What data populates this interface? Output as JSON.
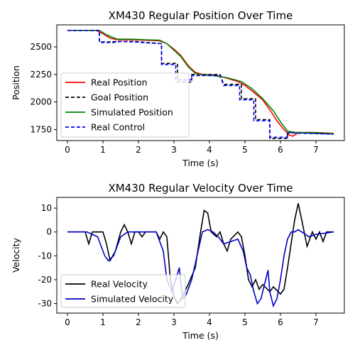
{
  "chart_data": [
    {
      "type": "line",
      "title": "XM430 Regular Position Over Time",
      "xlabel": "Time (s)",
      "ylabel": "Position",
      "xlim": [
        -0.3,
        7.8
      ],
      "ylim": [
        1650,
        2700
      ],
      "xticks": [
        0,
        1,
        2,
        3,
        4,
        5,
        6,
        7
      ],
      "yticks": [
        1750,
        2000,
        2250,
        2500
      ],
      "legend_position": "lower-left",
      "series": [
        {
          "name": "Real Position",
          "color": "#ff0000",
          "style": "solid",
          "points": [
            [
              0,
              2650
            ],
            [
              0.8,
              2650
            ],
            [
              1.0,
              2620
            ],
            [
              1.2,
              2580
            ],
            [
              1.4,
              2565
            ],
            [
              1.8,
              2565
            ],
            [
              2.2,
              2560
            ],
            [
              2.6,
              2555
            ],
            [
              2.8,
              2530
            ],
            [
              3.0,
              2480
            ],
            [
              3.2,
              2420
            ],
            [
              3.4,
              2330
            ],
            [
              3.6,
              2270
            ],
            [
              3.8,
              2250
            ],
            [
              4.1,
              2245
            ],
            [
              4.4,
              2225
            ],
            [
              4.8,
              2185
            ],
            [
              5.0,
              2150
            ],
            [
              5.2,
              2100
            ],
            [
              5.5,
              2020
            ],
            [
              5.7,
              1930
            ],
            [
              5.9,
              1830
            ],
            [
              6.1,
              1750
            ],
            [
              6.25,
              1700
            ],
            [
              6.35,
              1690
            ],
            [
              6.5,
              1720
            ],
            [
              6.8,
              1725
            ],
            [
              7.2,
              1720
            ],
            [
              7.5,
              1715
            ]
          ]
        },
        {
          "name": "Goal Position",
          "color": "#000000",
          "style": "dashed",
          "points": [
            [
              0,
              2650
            ],
            [
              0.9,
              2650
            ],
            [
              0.9,
              2545
            ],
            [
              1.2,
              2545
            ],
            [
              1.4,
              2550
            ],
            [
              1.9,
              2550
            ],
            [
              2.2,
              2540
            ],
            [
              2.65,
              2530
            ],
            [
              2.65,
              2350
            ],
            [
              3.1,
              2350
            ],
            [
              3.1,
              2180
            ],
            [
              3.5,
              2180
            ],
            [
              3.5,
              2250
            ],
            [
              4.3,
              2250
            ],
            [
              4.4,
              2160
            ],
            [
              4.9,
              2160
            ],
            [
              4.9,
              2030
            ],
            [
              5.3,
              2030
            ],
            [
              5.3,
              1840
            ],
            [
              5.7,
              1840
            ],
            [
              5.7,
              1670
            ],
            [
              6.2,
              1670
            ],
            [
              6.2,
              1725
            ],
            [
              7.5,
              1710
            ]
          ]
        },
        {
          "name": "Simulated Position",
          "color": "#008000",
          "style": "solid",
          "points": [
            [
              0,
              2650
            ],
            [
              0.9,
              2650
            ],
            [
              1.1,
              2610
            ],
            [
              1.4,
              2570
            ],
            [
              1.8,
              2570
            ],
            [
              2.2,
              2565
            ],
            [
              2.6,
              2560
            ],
            [
              2.8,
              2530
            ],
            [
              3.0,
              2470
            ],
            [
              3.2,
              2410
            ],
            [
              3.4,
              2320
            ],
            [
              3.6,
              2260
            ],
            [
              3.8,
              2245
            ],
            [
              4.1,
              2240
            ],
            [
              4.5,
              2220
            ],
            [
              4.9,
              2185
            ],
            [
              5.2,
              2120
            ],
            [
              5.5,
              2030
            ],
            [
              5.8,
              1920
            ],
            [
              6.0,
              1820
            ],
            [
              6.2,
              1735
            ],
            [
              6.4,
              1725
            ],
            [
              7.0,
              1720
            ],
            [
              7.5,
              1712
            ]
          ]
        },
        {
          "name": "Real Control",
          "color": "#0000ff",
          "style": "dashed",
          "points": [
            [
              0,
              2650
            ],
            [
              0.9,
              2650
            ],
            [
              0.9,
              2540
            ],
            [
              1.3,
              2540
            ],
            [
              1.5,
              2550
            ],
            [
              1.9,
              2545
            ],
            [
              2.3,
              2535
            ],
            [
              2.65,
              2530
            ],
            [
              2.65,
              2340
            ],
            [
              3.05,
              2340
            ],
            [
              3.05,
              2200
            ],
            [
              3.5,
              2200
            ],
            [
              3.5,
              2240
            ],
            [
              4.3,
              2240
            ],
            [
              4.4,
              2150
            ],
            [
              4.85,
              2150
            ],
            [
              4.85,
              2020
            ],
            [
              5.25,
              2020
            ],
            [
              5.25,
              1830
            ],
            [
              5.7,
              1830
            ],
            [
              5.7,
              1680
            ],
            [
              6.2,
              1680
            ],
            [
              6.2,
              1720
            ],
            [
              7.5,
              1708
            ]
          ]
        }
      ]
    },
    {
      "type": "line",
      "title": "XM430 Regular Velocity Over Time",
      "xlabel": "Time (s)",
      "ylabel": "Velocity",
      "xlim": [
        -0.3,
        7.8
      ],
      "ylim": [
        -34,
        14.5
      ],
      "xticks": [
        0,
        1,
        2,
        3,
        4,
        5,
        6,
        7
      ],
      "yticks": [
        10,
        0,
        -10,
        -20,
        -30
      ],
      "legend_position": "lower-left",
      "series": [
        {
          "name": "Real Velocity",
          "color": "#000000",
          "style": "solid",
          "points": [
            [
              0,
              0
            ],
            [
              0.5,
              0
            ],
            [
              0.6,
              -5
            ],
            [
              0.7,
              0
            ],
            [
              1.0,
              0
            ],
            [
              1.1,
              -5
            ],
            [
              1.2,
              -12
            ],
            [
              1.35,
              -8
            ],
            [
              1.5,
              0
            ],
            [
              1.6,
              3
            ],
            [
              1.7,
              0
            ],
            [
              1.8,
              -5
            ],
            [
              1.9,
              0
            ],
            [
              2.0,
              0
            ],
            [
              2.1,
              -2
            ],
            [
              2.2,
              0
            ],
            [
              2.5,
              0
            ],
            [
              2.6,
              -3
            ],
            [
              2.7,
              0
            ],
            [
              2.8,
              -2
            ],
            [
              2.9,
              -20
            ],
            [
              3.0,
              -27
            ],
            [
              3.1,
              -30
            ],
            [
              3.2,
              -28
            ],
            [
              3.4,
              -22
            ],
            [
              3.6,
              -15
            ],
            [
              3.75,
              0
            ],
            [
              3.85,
              9
            ],
            [
              3.95,
              8
            ],
            [
              4.05,
              0
            ],
            [
              4.2,
              -2
            ],
            [
              4.3,
              0
            ],
            [
              4.4,
              -5
            ],
            [
              4.5,
              -8
            ],
            [
              4.6,
              -3
            ],
            [
              4.8,
              0
            ],
            [
              4.9,
              -2
            ],
            [
              5.0,
              -10
            ],
            [
              5.1,
              -20
            ],
            [
              5.2,
              -23
            ],
            [
              5.3,
              -20
            ],
            [
              5.4,
              -24
            ],
            [
              5.5,
              -22
            ],
            [
              5.7,
              -25
            ],
            [
              5.8,
              -23
            ],
            [
              6.0,
              -26
            ],
            [
              6.1,
              -24
            ],
            [
              6.2,
              -15
            ],
            [
              6.3,
              -5
            ],
            [
              6.4,
              5
            ],
            [
              6.5,
              12
            ],
            [
              6.6,
              5
            ],
            [
              6.75,
              -6
            ],
            [
              6.9,
              0
            ],
            [
              7.0,
              -3
            ],
            [
              7.1,
              0
            ],
            [
              7.2,
              -4
            ],
            [
              7.3,
              0
            ],
            [
              7.5,
              0
            ]
          ]
        },
        {
          "name": "Simulated Velocity",
          "color": "#0000cc",
          "style": "solid",
          "points": [
            [
              0,
              0
            ],
            [
              0.55,
              0
            ],
            [
              0.7,
              -1
            ],
            [
              0.85,
              -2
            ],
            [
              1.05,
              -10
            ],
            [
              1.15,
              -12
            ],
            [
              1.3,
              -10
            ],
            [
              1.5,
              -2
            ],
            [
              1.7,
              0
            ],
            [
              2.5,
              0
            ],
            [
              2.7,
              -8
            ],
            [
              2.8,
              -20
            ],
            [
              2.95,
              -25
            ],
            [
              3.05,
              -20
            ],
            [
              3.15,
              -15
            ],
            [
              3.25,
              -28
            ],
            [
              3.35,
              -26
            ],
            [
              3.5,
              -20
            ],
            [
              3.65,
              -10
            ],
            [
              3.8,
              0
            ],
            [
              3.95,
              1
            ],
            [
              4.1,
              0
            ],
            [
              4.25,
              -2
            ],
            [
              4.4,
              -5
            ],
            [
              4.6,
              -4
            ],
            [
              4.8,
              -3
            ],
            [
              4.95,
              -8
            ],
            [
              5.05,
              -15
            ],
            [
              5.15,
              -18
            ],
            [
              5.25,
              -25
            ],
            [
              5.35,
              -30
            ],
            [
              5.45,
              -28
            ],
            [
              5.55,
              -22
            ],
            [
              5.65,
              -16
            ],
            [
              5.7,
              -25
            ],
            [
              5.8,
              -31
            ],
            [
              5.9,
              -28
            ],
            [
              6.0,
              -20
            ],
            [
              6.1,
              -10
            ],
            [
              6.2,
              -3
            ],
            [
              6.3,
              0
            ],
            [
              6.4,
              0
            ],
            [
              6.5,
              1
            ],
            [
              6.6,
              0
            ],
            [
              6.8,
              -2
            ],
            [
              7.0,
              -1
            ],
            [
              7.5,
              0
            ]
          ]
        }
      ]
    }
  ]
}
